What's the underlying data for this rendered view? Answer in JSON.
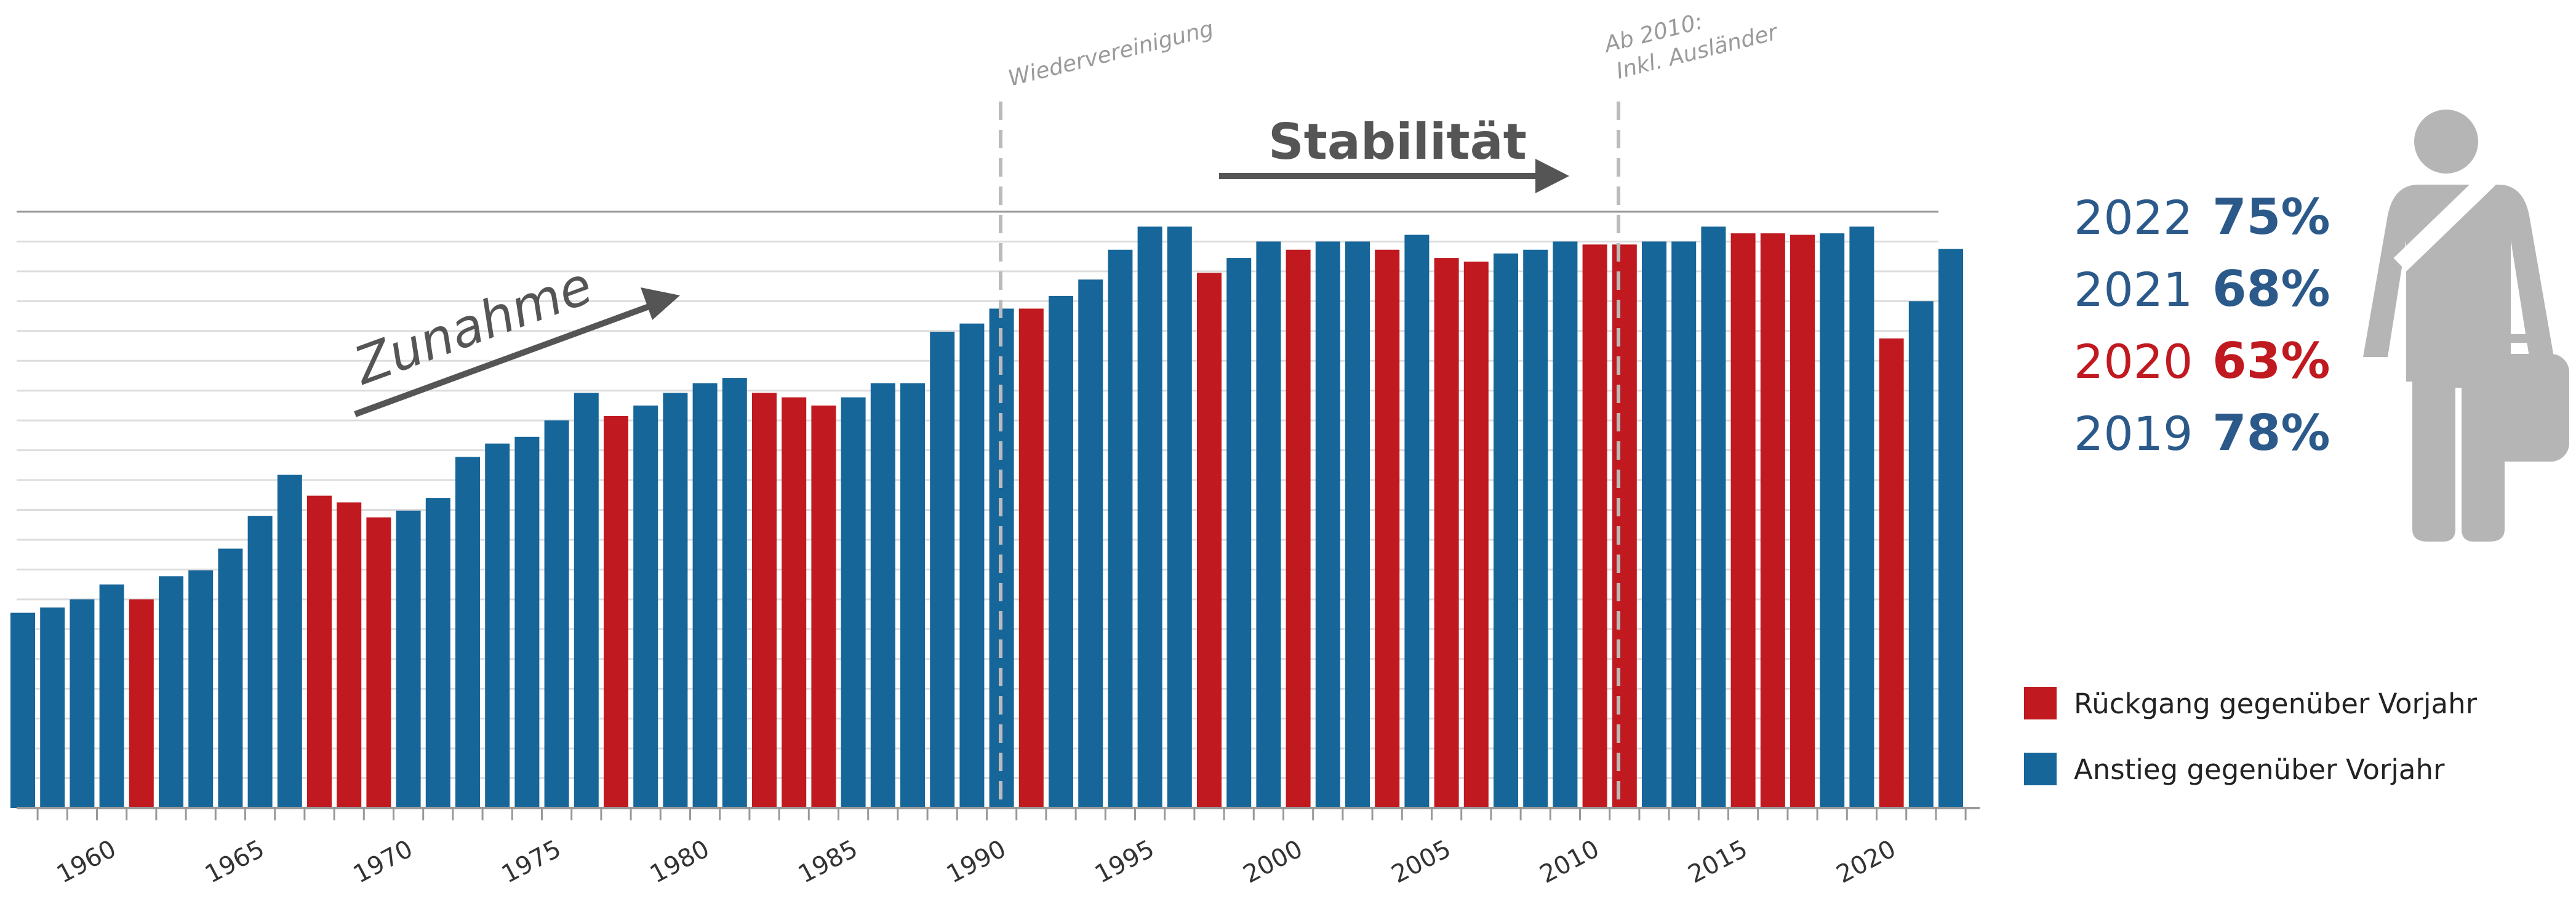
{
  "chart_data": {
    "type": "bar",
    "categories": [
      null,
      null,
      null,
      "1960",
      null,
      null,
      null,
      null,
      "1965",
      null,
      null,
      null,
      null,
      "1970",
      null,
      null,
      null,
      null,
      "1975",
      null,
      null,
      null,
      null,
      "1980",
      null,
      null,
      null,
      null,
      "1985",
      null,
      null,
      null,
      null,
      "1990",
      null,
      null,
      null,
      null,
      "1995",
      null,
      null,
      null,
      null,
      "2000",
      null,
      null,
      null,
      null,
      "2005",
      null,
      null,
      null,
      null,
      "2010",
      null,
      null,
      null,
      null,
      "2015",
      null,
      null,
      null,
      null,
      "2020",
      null,
      null
    ],
    "series": [
      {
        "name": "Rückgang gegenüber Vorjahr",
        "color": "#c0191f",
        "values": [
          null,
          null,
          null,
          null,
          28.0,
          null,
          null,
          null,
          null,
          null,
          41.9,
          41.0,
          39.0,
          null,
          null,
          null,
          null,
          null,
          null,
          null,
          52.6,
          null,
          null,
          null,
          null,
          55.7,
          55.1,
          54.0,
          null,
          null,
          null,
          null,
          null,
          null,
          67.0,
          null,
          null,
          null,
          null,
          null,
          71.8,
          null,
          null,
          74.9,
          null,
          null,
          74.9,
          null,
          73.8,
          73.3,
          null,
          null,
          null,
          75.6,
          75.6,
          null,
          null,
          null,
          77.1,
          77.1,
          76.9,
          null,
          null,
          63,
          null,
          null
        ]
      },
      {
        "name": "Anstieg gegenüber Vorjahr",
        "color": "#16669a",
        "values": [
          26.2,
          26.9,
          28.0,
          30.0,
          null,
          31.1,
          31.9,
          34.8,
          39.2,
          44.7,
          null,
          null,
          null,
          39.9,
          41.6,
          47.1,
          48.9,
          49.8,
          52.0,
          55.7,
          null,
          54.0,
          55.7,
          57.0,
          57.7,
          null,
          null,
          null,
          55.1,
          57.0,
          57.0,
          63.9,
          65.0,
          67.0,
          null,
          68.7,
          70.9,
          74.9,
          78.0,
          78.0,
          null,
          73.8,
          76.0,
          null,
          76.0,
          76.0,
          null,
          76.9,
          null,
          null,
          74.4,
          74.9,
          76.0,
          null,
          null,
          76.0,
          76.0,
          78.0,
          null,
          null,
          null,
          77.1,
          78,
          null,
          68,
          75
        ]
      }
    ],
    "ylim": [
      0,
      80
    ],
    "yticks": [
      0,
      4,
      8,
      12,
      16,
      20,
      24,
      28,
      32,
      36,
      40,
      44,
      48,
      52,
      56,
      60,
      64,
      68,
      72,
      76,
      80
    ],
    "grid": true,
    "annotations": [
      "Wiedervereinigung",
      "Ab 2010:",
      "Inkl. Ausländer",
      "Stabilität",
      "Zunahme"
    ],
    "highlights": [
      {
        "year": "2022",
        "share": "75%",
        "color": "#2b5a8a"
      },
      {
        "year": "2021",
        "share": "68%",
        "color": "#2b5a8a"
      },
      {
        "year": "2020",
        "share": "63%",
        "color": "#c0191f"
      },
      {
        "year": "2019",
        "share": "78%",
        "color": "#2b5a8a"
      }
    ]
  }
}
